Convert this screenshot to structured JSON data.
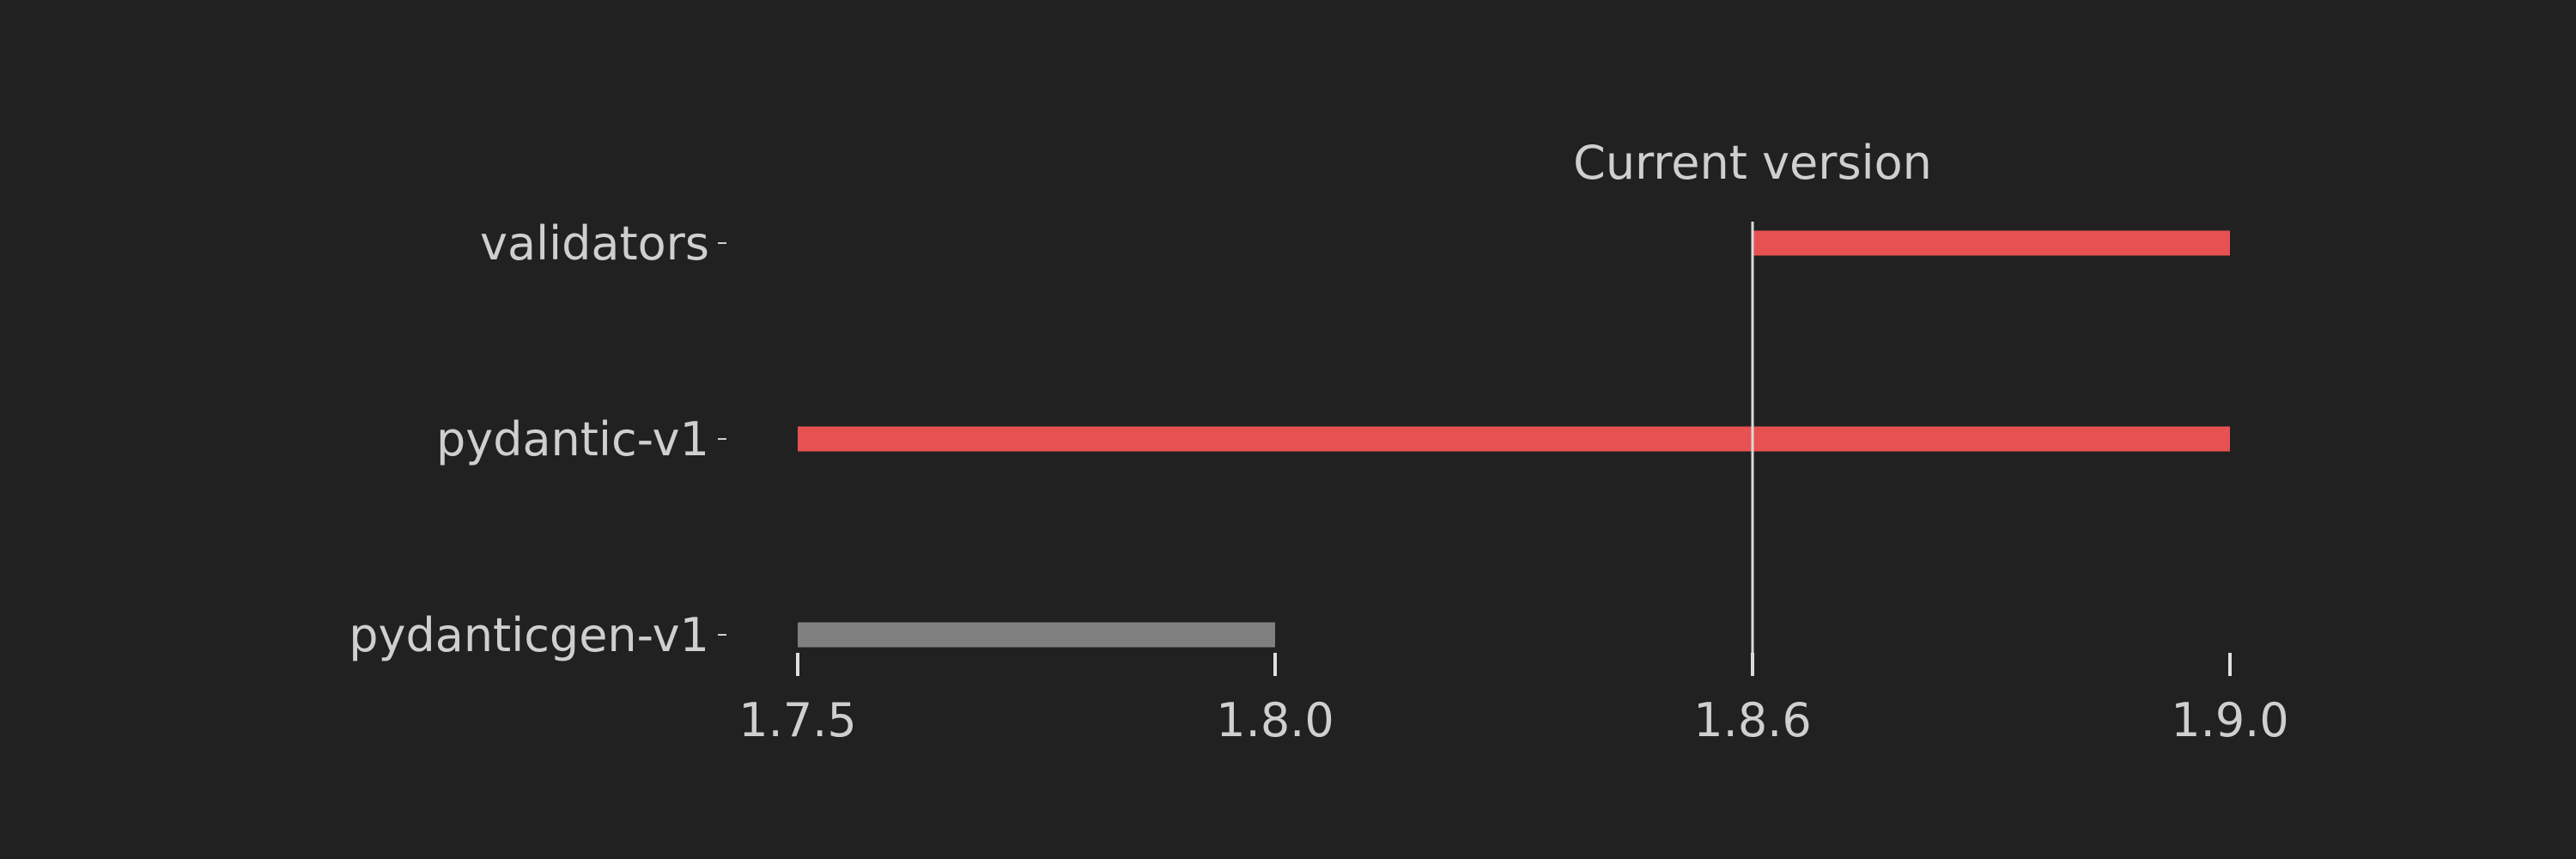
{
  "chart_data": {
    "type": "bar",
    "orientation": "horizontal-range",
    "x_axis_ticks": [
      "1.7.5",
      "1.8.0",
      "1.8.6",
      "1.9.0"
    ],
    "rows": [
      {
        "label": "validators",
        "start": "1.8.6",
        "end": "1.9.0",
        "color": "#e85151"
      },
      {
        "label": "pydantic-v1",
        "start": "1.7.5",
        "end": "1.9.0",
        "color": "#e85151"
      },
      {
        "label": "pydanticgen-v1",
        "start": "1.7.5",
        "end": "1.8.0",
        "color": "#808080"
      }
    ],
    "marker": {
      "label": "Current version",
      "at": "1.8.6",
      "color": "#d9d9d9"
    },
    "grid": false,
    "legend": "none"
  },
  "colors": {
    "background": "#212121",
    "text": "#cfcfcf"
  }
}
